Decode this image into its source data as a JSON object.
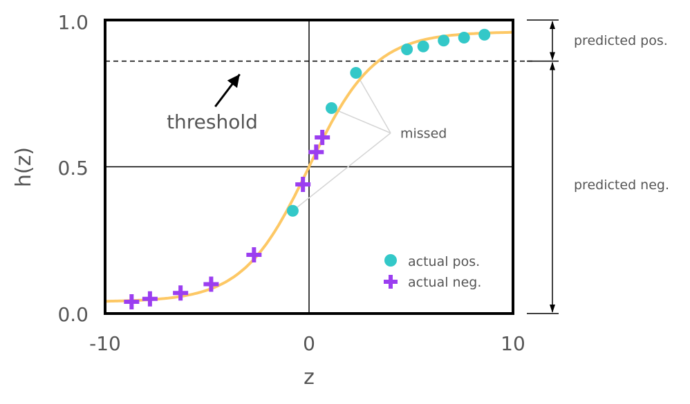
{
  "chart_data": {
    "type": "scatter",
    "title": "",
    "xlabel": "z",
    "ylabel": "h(z)",
    "xlim": [
      -10,
      10
    ],
    "ylim": [
      0.0,
      1.0
    ],
    "x_ticks": [
      "-10",
      "0",
      "10"
    ],
    "y_ticks": [
      "0.0",
      "0.5",
      "1.0"
    ],
    "grid": false,
    "reference_lines": {
      "x": 0,
      "y": 0.5
    },
    "threshold": 0.86,
    "curve": {
      "type": "line",
      "function": "sigmoid",
      "color": "#fdc865"
    },
    "series": [
      {
        "name": "actual pos.",
        "marker": "circle",
        "color": "#33c8c8",
        "points": [
          {
            "x": -0.8,
            "y": 0.35
          },
          {
            "x": 1.1,
            "y": 0.7
          },
          {
            "x": 2.3,
            "y": 0.82
          },
          {
            "x": 4.8,
            "y": 0.9
          },
          {
            "x": 5.6,
            "y": 0.91
          },
          {
            "x": 6.6,
            "y": 0.93
          },
          {
            "x": 7.6,
            "y": 0.94
          },
          {
            "x": 8.6,
            "y": 0.95
          }
        ]
      },
      {
        "name": "actual neg.",
        "marker": "plus",
        "color": "#9b3ef0",
        "points": [
          {
            "x": -8.7,
            "y": 0.04
          },
          {
            "x": -7.8,
            "y": 0.05
          },
          {
            "x": -6.3,
            "y": 0.07
          },
          {
            "x": -4.8,
            "y": 0.1
          },
          {
            "x": -2.7,
            "y": 0.2
          },
          {
            "x": -0.3,
            "y": 0.44
          },
          {
            "x": 0.35,
            "y": 0.55
          },
          {
            "x": 0.65,
            "y": 0.6
          }
        ]
      }
    ],
    "legend_position": "bottom-right",
    "annotations": {
      "threshold_label": "threshold",
      "missed_label": "missed",
      "missed_points": [
        {
          "x": -0.8,
          "y": 0.35
        },
        {
          "x": 1.1,
          "y": 0.7
        },
        {
          "x": 2.3,
          "y": 0.82
        }
      ],
      "missed_anchor": {
        "x": 4.0,
        "y": 0.615
      },
      "threshold_arrow": {
        "from": {
          "x": -4.6,
          "y": 0.705
        },
        "to": {
          "x": -3.4,
          "y": 0.815
        }
      },
      "regions": [
        {
          "label": "predicted pos.",
          "from": 0.86,
          "to": 1.0
        },
        {
          "label": "predicted neg.",
          "from": 0.0,
          "to": 0.86
        }
      ]
    },
    "colors": {
      "curve": "#fdc865",
      "positive": "#33c8c8",
      "negative": "#9b3ef0",
      "missed_lines": "#d4d4d4",
      "missed_text": "#c8c8c8",
      "frame": "#000000"
    }
  }
}
